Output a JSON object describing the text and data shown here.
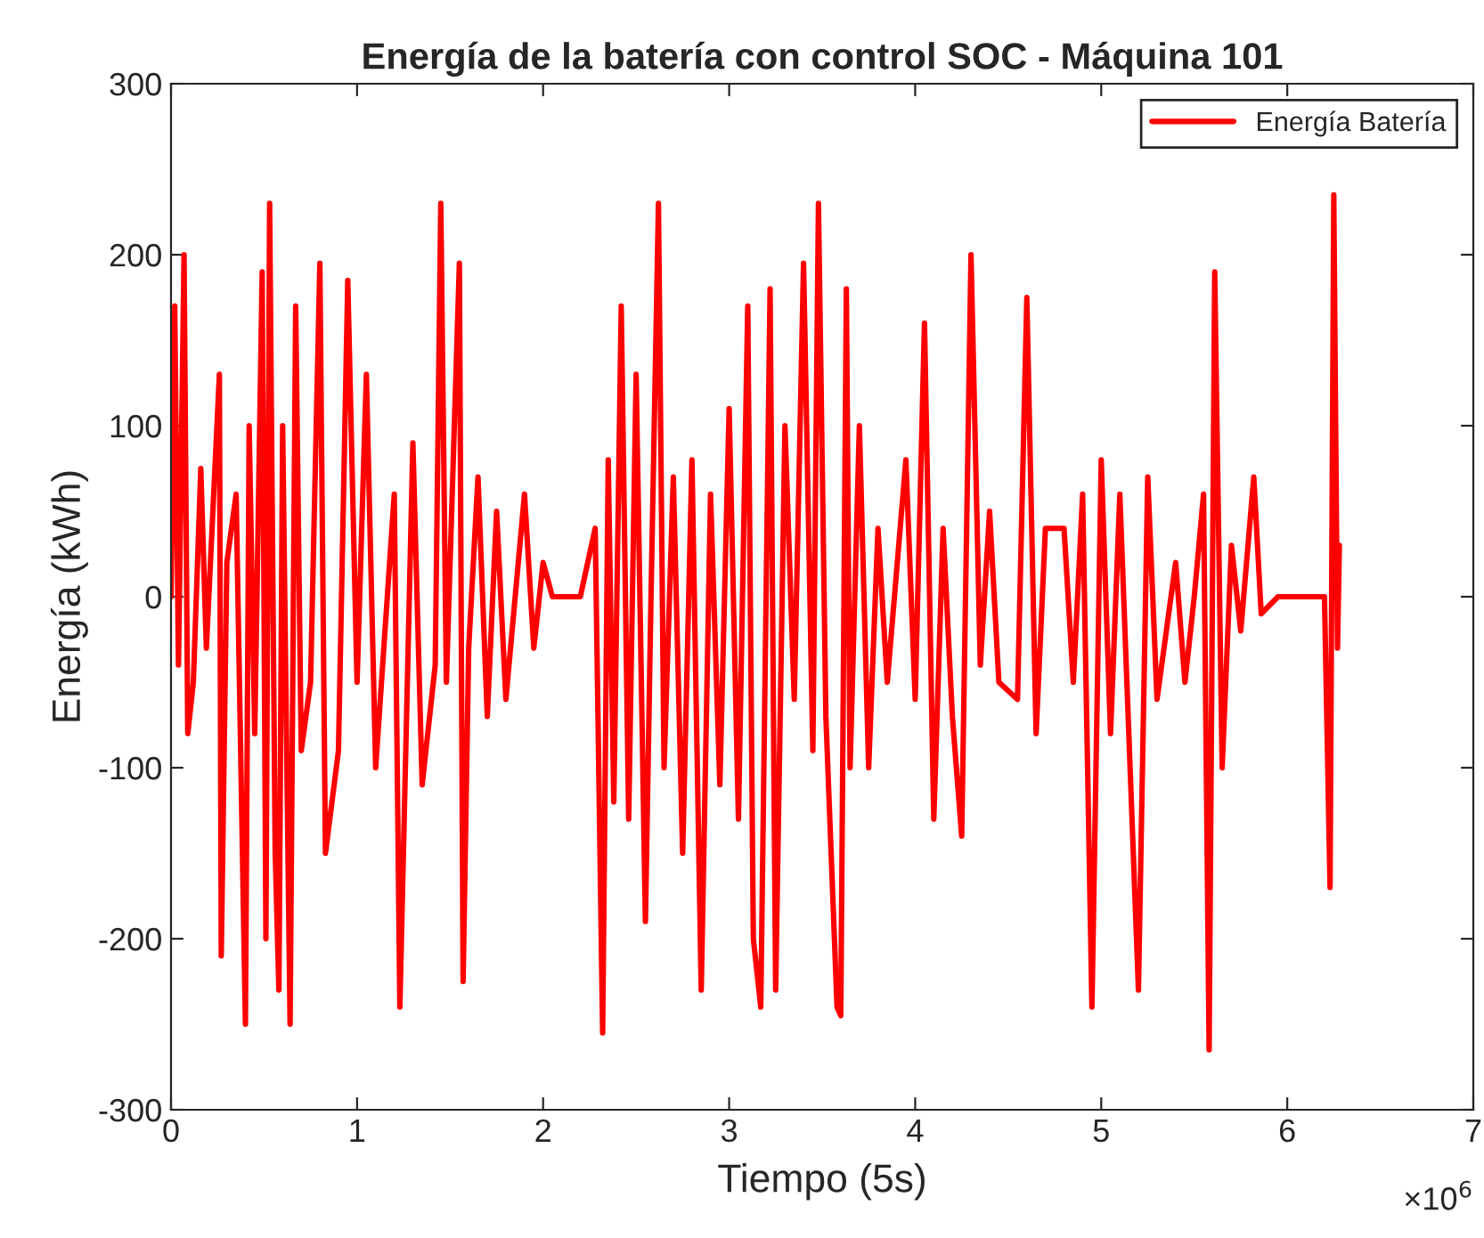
{
  "chart_data": {
    "type": "line",
    "title": "Energía de la batería con control SOC - Máquina 101",
    "xlabel": "Tiempo (5s)",
    "ylabel": "Energía (kWh)",
    "annotations": [
      "×10$^{6}$"
    ],
    "xlim": [
      0,
      7
    ],
    "xticks": [
      0,
      1,
      2,
      3,
      4,
      5,
      6,
      7
    ],
    "ylim": [
      -300,
      300
    ],
    "yticks": [
      -300,
      -200,
      -100,
      0,
      100,
      200,
      300
    ],
    "grid": false,
    "legend": "top right",
    "line_style": "solid",
    "marker": "none",
    "series": [
      {
        "name": "Energía Batería",
        "color": "#ff0000",
        "x": [
          0,
          0.02,
          0.04,
          0.07,
          0.09,
          0.12,
          0.16,
          0.19,
          0.26,
          0.27,
          0.3,
          0.35,
          0.4,
          0.42,
          0.45,
          0.49,
          0.51,
          0.53,
          0.56,
          0.58,
          0.6,
          0.64,
          0.67,
          0.7,
          0.75,
          0.8,
          0.83,
          0.9,
          0.95,
          1.0,
          1.05,
          1.1,
          1.2,
          1.23,
          1.3,
          1.35,
          1.42,
          1.45,
          1.48,
          1.55,
          1.57,
          1.6,
          1.65,
          1.7,
          1.75,
          1.8,
          1.9,
          1.95,
          2.0,
          2.05,
          2.2,
          2.28,
          2.32,
          2.35,
          2.38,
          2.42,
          2.46,
          2.5,
          2.55,
          2.58,
          2.62,
          2.65,
          2.7,
          2.75,
          2.8,
          2.85,
          2.9,
          2.95,
          3.0,
          3.05,
          3.1,
          3.13,
          3.17,
          3.22,
          3.25,
          3.3,
          3.35,
          3.4,
          3.45,
          3.48,
          3.52,
          3.58,
          3.6,
          3.63,
          3.65,
          3.7,
          3.75,
          3.8,
          3.85,
          3.95,
          4.0,
          4.05,
          4.1,
          4.15,
          4.2,
          4.25,
          4.3,
          4.35,
          4.4,
          4.45,
          4.55,
          4.6,
          4.65,
          4.7,
          4.8,
          4.85,
          4.9,
          4.95,
          5.0,
          5.05,
          5.1,
          5.2,
          5.25,
          5.3,
          5.4,
          5.45,
          5.5,
          5.55,
          5.58,
          5.61,
          5.65,
          5.7,
          5.75,
          5.82,
          5.86,
          5.95,
          6.1,
          6.2,
          6.23,
          6.25,
          6.27,
          6.28
        ],
        "values": [
          0,
          170,
          -40,
          200,
          -80,
          -50,
          75,
          -30,
          130,
          -210,
          20,
          60,
          -250,
          100,
          -80,
          190,
          -200,
          230,
          -150,
          -230,
          100,
          -250,
          170,
          -90,
          -50,
          195,
          -150,
          -90,
          185,
          -50,
          130,
          -100,
          60,
          -240,
          90,
          -110,
          -40,
          230,
          -50,
          195,
          -225,
          -30,
          70,
          -70,
          50,
          -60,
          60,
          -30,
          20,
          0,
          0,
          40,
          -255,
          80,
          -120,
          170,
          -130,
          130,
          -190,
          0,
          230,
          -100,
          70,
          -150,
          80,
          -230,
          60,
          -110,
          110,
          -130,
          170,
          -200,
          -240,
          180,
          -230,
          100,
          -60,
          195,
          -90,
          230,
          -70,
          -240,
          -245,
          180,
          -100,
          100,
          -100,
          40,
          -50,
          80,
          -60,
          160,
          -130,
          40,
          -70,
          -140,
          200,
          -40,
          50,
          -50,
          -60,
          175,
          -80,
          40,
          40,
          -50,
          60,
          -240,
          80,
          -80,
          60,
          -230,
          70,
          -60,
          20,
          -50,
          0,
          60,
          -265,
          190,
          -100,
          30,
          -20,
          70,
          -10,
          0,
          0,
          0,
          -170,
          235,
          -30,
          30
        ]
      }
    ]
  }
}
